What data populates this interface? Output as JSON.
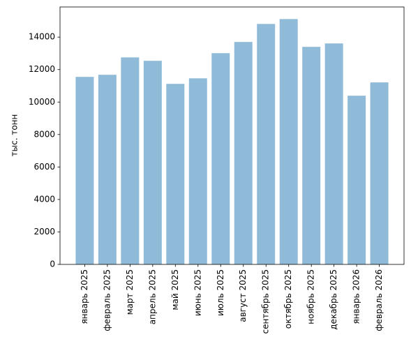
{
  "chart_data": {
    "type": "bar",
    "ylabel": "тыс. тонн",
    "categories": [
      "январь 2025",
      "февраль 2025",
      "март 2025",
      "апрель 2025",
      "май 2025",
      "июнь 2025",
      "июль 2025",
      "август 2025",
      "сентябрь 2025",
      "октябрь 2025",
      "ноябрь 2025",
      "декабрь 2025",
      "январь 2026",
      "февраль 2026"
    ],
    "values": [
      11550,
      11680,
      12750,
      12540,
      11120,
      11460,
      13010,
      13700,
      14810,
      15110,
      13400,
      13610,
      10390,
      11210
    ],
    "color": "#8fbbd9",
    "ylim": [
      0,
      15855
    ],
    "yticks": [
      0,
      2000,
      4000,
      6000,
      8000,
      10000,
      12000,
      14000
    ]
  }
}
